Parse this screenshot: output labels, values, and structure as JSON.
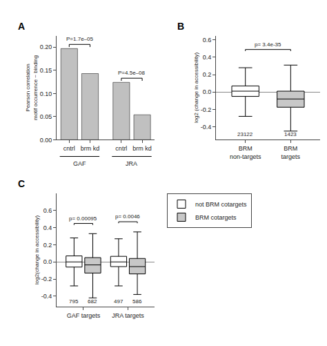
{
  "chart_data": [
    {
      "type": "bar",
      "title": "A",
      "ylabel": "Pearson correlation\nmotif occurrence ~ binding",
      "categories": [
        "cntrl",
        "brm kd",
        "cntrl",
        "brm kd"
      ],
      "group_labels": [
        "GAF",
        "JRA"
      ],
      "values": [
        0.197,
        0.143,
        0.124,
        0.054
      ],
      "color": "#c0c0c0",
      "ylim": [
        0,
        0.225
      ],
      "yticks": [
        {
          "value": 0,
          "label": "0.00"
        },
        0.05,
        {
          "value": 0.1,
          "label": "0.10"
        },
        0.15,
        {
          "value": 0.2,
          "label": "0.20"
        }
      ],
      "annotations": [
        "P=1.7e–05",
        "P=4.5e–08"
      ],
      "grid": false
    },
    {
      "type": "box",
      "title": "B",
      "ylabel": "log2 (change in accessibility)",
      "categories": [
        "BRM\nnon-targets",
        "BRM\ntargets"
      ],
      "median": [
        0.01,
        -0.08
      ],
      "q1": [
        -0.05,
        -0.175
      ],
      "q3": [
        0.07,
        0.01
      ],
      "whislo": [
        -0.28,
        -0.45
      ],
      "whishi": [
        0.28,
        0.31
      ],
      "n": [
        23122,
        1423
      ],
      "colors": [
        "white",
        "#c8c8c8"
      ],
      "ylim": [
        -0.55,
        0.65
      ],
      "yticks": [
        -0.4,
        -0.2,
        {
          "value": 0,
          "label": "0.0"
        },
        0.2,
        0.4,
        0.6
      ],
      "annotations": [
        "p= 3.4e-35"
      ],
      "grid": false
    },
    {
      "type": "box",
      "title": "C",
      "ylabel": "log2(change in accessibility)",
      "categories": [
        "GAF targets",
        "JRA targets"
      ],
      "series": [
        {
          "name": "not BRM cotargets",
          "color": "white",
          "median": [
            0.0,
            0.0
          ],
          "q1": [
            -0.06,
            -0.055
          ],
          "q3": [
            0.07,
            0.065
          ],
          "whislo": [
            -0.28,
            -0.28
          ],
          "whishi": [
            0.28,
            0.27
          ],
          "n": [
            795,
            497
          ]
        },
        {
          "name": "BRM cotargets",
          "color": "#c8c8c8",
          "median": [
            -0.035,
            -0.055
          ],
          "q1": [
            -0.13,
            -0.14
          ],
          "q3": [
            0.05,
            0.04
          ],
          "whislo": [
            -0.42,
            -0.38
          ],
          "whishi": [
            0.33,
            0.35
          ],
          "n": [
            682,
            586
          ]
        }
      ],
      "ylim": [
        -0.52,
        0.8
      ],
      "yticks": [
        -0.4,
        -0.2,
        {
          "value": 0,
          "label": "0.0"
        },
        0.2,
        0.4,
        0.6
      ],
      "annotations": [
        "p= 0.00095",
        "p= 0.0046"
      ],
      "legend": "upper right",
      "grid": false
    }
  ]
}
